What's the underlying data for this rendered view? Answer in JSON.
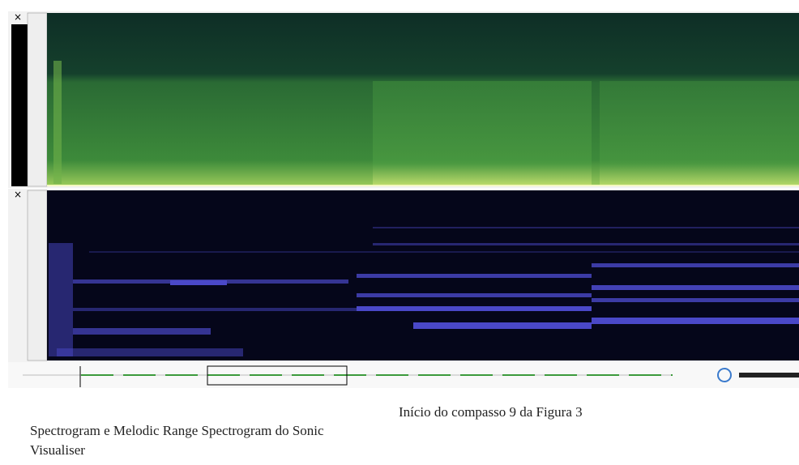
{
  "captions": {
    "figure_note": "Início do compasso 9 da Figura 3",
    "caption": "Spectrogram e Melodic Range Spectrogram do Sonic Visualiser"
  }
}
